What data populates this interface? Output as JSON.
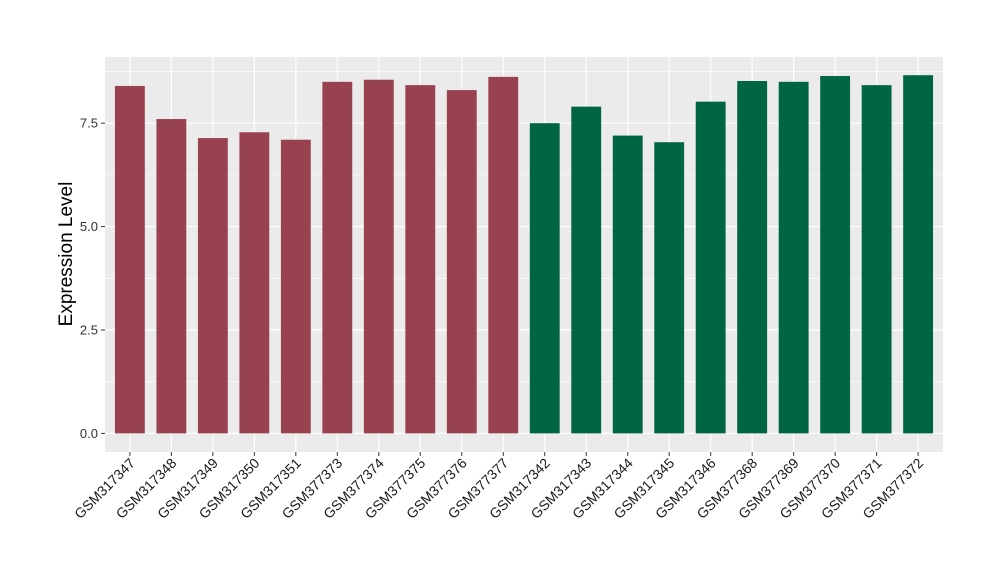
{
  "chart_data": {
    "type": "bar",
    "title": "",
    "xlabel": "",
    "ylabel": "Expression Level",
    "ylim": [
      -0.45,
      9.1
    ],
    "yticks": [
      0.0,
      2.5,
      5.0,
      7.5
    ],
    "ytick_labels": [
      "0.0",
      "2.5",
      "5.0",
      "7.5"
    ],
    "grid": true,
    "legend": "none",
    "categories": [
      "GSM317347",
      "GSM317348",
      "GSM317349",
      "GSM317350",
      "GSM317351",
      "GSM377373",
      "GSM377374",
      "GSM377375",
      "GSM377376",
      "GSM377377",
      "GSM317342",
      "GSM317343",
      "GSM317344",
      "GSM317345",
      "GSM317346",
      "GSM377368",
      "GSM377369",
      "GSM377370",
      "GSM377371",
      "GSM377372"
    ],
    "values": [
      8.4,
      7.6,
      7.14,
      7.28,
      7.1,
      8.5,
      8.55,
      8.42,
      8.3,
      8.62,
      7.5,
      7.9,
      7.2,
      7.04,
      8.02,
      8.52,
      8.5,
      8.64,
      8.42,
      8.66
    ],
    "bar_colors": [
      "#99424f",
      "#99424f",
      "#99424f",
      "#99424f",
      "#99424f",
      "#99424f",
      "#99424f",
      "#99424f",
      "#99424f",
      "#99424f",
      "#006543",
      "#006543",
      "#006543",
      "#006543",
      "#006543",
      "#006543",
      "#006543",
      "#006543",
      "#006543",
      "#006543"
    ],
    "panel_background": "#ebebeb",
    "gridline_color": "#ffffff"
  }
}
